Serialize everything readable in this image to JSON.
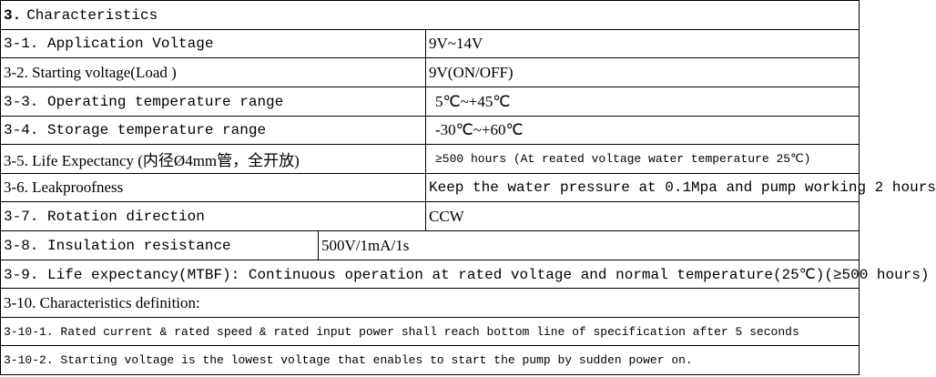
{
  "section": {
    "number": "3.",
    "title": "Characteristics"
  },
  "table": {
    "rows": [
      [
        "3-1.  Application Voltage",
        "9V~14V"
      ],
      [
        "3-2. Starting voltage(Load )",
        "9V(ON/OFF)"
      ],
      [
        "3-3. Operating temperature range",
        "5℃~+45℃"
      ],
      [
        "3-4. Storage temperature range",
        "-30℃~+60℃"
      ],
      [
        "3-5. Life Expectancy (内径Ø4mm管，全开放)",
        "≥500 hours (At reated voltage water temperature 25℃)"
      ],
      [
        "3-6. Leakproofness",
        "Keep the water pressure at 0.1Mpa and pump working 2 hours"
      ],
      [
        "3-7.  Rotation direction",
        "CCW"
      ],
      [
        "3-8. Insulation resistance",
        "500V/1mA/1s"
      ],
      [
        "3-9. Life expectancy(MTBF): Continuous operation at rated voltage and normal temperature(25℃)(≥500 hours)"
      ],
      [
        "3-10. Characteristics definition:"
      ],
      [
        "3-10-1. Rated current & rated speed & rated input power shall reach bottom line of specification after  5 seconds"
      ],
      [
        "3-10-2. Starting voltage is the lowest voltage that enables to start the pump by sudden power on."
      ]
    ]
  }
}
